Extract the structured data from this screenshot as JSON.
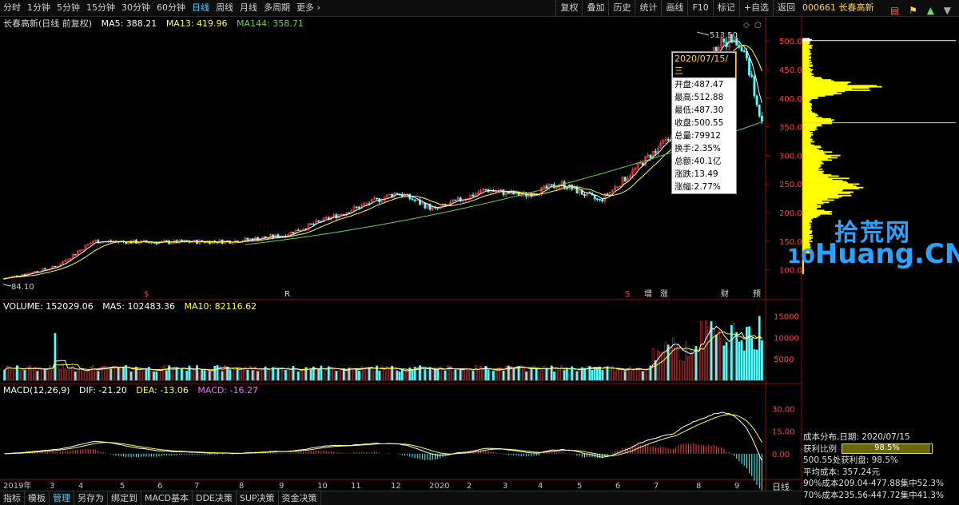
{
  "topbar": {
    "periods": [
      "分时",
      "1分钟",
      "5分钟",
      "15分钟",
      "30分钟",
      "60分钟",
      "日线",
      "周线",
      "月线",
      "多周期",
      "更多"
    ],
    "active_period": "日线",
    "tools": [
      "复权",
      "叠加",
      "历史",
      "统计",
      "画线",
      "F10",
      "标记",
      "+自选",
      "返回"
    ],
    "stock": "000661 长春高新"
  },
  "main": {
    "title": "长春高新(日线 前复权)",
    "ma5": "MA5: 388.21",
    "ma13": "MA13: 419.96",
    "ma144": "MA144: 358.71",
    "high_label": "513.50",
    "low_label": "84.10",
    "price_axis": [
      "500.0",
      "450.0",
      "400.0",
      "350.0",
      "300.0",
      "250.0",
      "200.0",
      "150.0",
      "100.0"
    ],
    "event_tags": [
      "$",
      "R",
      "S",
      "增",
      "涨",
      "财",
      "预"
    ]
  },
  "tooltip": {
    "date": "2020/07/15/三",
    "rows": [
      "开盘:487.47",
      "最高:512.88",
      "最低:487.30",
      "收盘:500.55",
      "总量:79912",
      "换手:2.35%",
      "总额:40.1亿",
      "涨跌:13.49",
      "涨幅:2.77%"
    ]
  },
  "volume": {
    "title": "VOLUME: 152029.06",
    "ma5": "MA5: 102483.36",
    "ma10": "MA10: 82116.62",
    "axis": [
      "15000",
      "10000",
      "5000"
    ]
  },
  "macd": {
    "title": "MACD(12,26,9)",
    "dif": "DIF: -21.20",
    "dea": "DEA: -13.06",
    "macd": "MACD: -16.27",
    "axis": [
      "30.00",
      "15.00",
      "0.00"
    ]
  },
  "time_axis": [
    "2019年",
    "3",
    "4",
    "5",
    "6",
    "7",
    "8",
    "9",
    "10",
    "11",
    "12",
    "2020",
    "2",
    "3",
    "4",
    "5",
    "6",
    "7",
    "8",
    "9"
  ],
  "bottombar": {
    "tabs": [
      "指标",
      "模板",
      "管理",
      "另存为",
      "绑定到",
      "MACD基本",
      "DDE决策",
      "SUP决策",
      "资金决策"
    ],
    "active": "管理",
    "period": "日线"
  },
  "cost": {
    "title": "成本分布,日期: 2020/07/15",
    "profit_label": "获利比例",
    "profit_value": "98.5%",
    "profit_fraction": 0.985,
    "line1": "500.55处获利盘: 98.5%",
    "line2": "平均成本: 357.24元",
    "line3": "90%成本209.04-477.88集中52.3%",
    "line4": "70%成本235.56-447.72集中41.3%"
  },
  "watermark": {
    "cn": "拾荒网",
    "en_prefix": "10",
    "en": "Huang.CN"
  },
  "colors": {
    "up": "#ff4040",
    "down": "#54ffff",
    "ma5": "#ffffff",
    "ma13": "#ffff40",
    "ma144": "#6ed04a",
    "chip": "#ffff00"
  }
}
